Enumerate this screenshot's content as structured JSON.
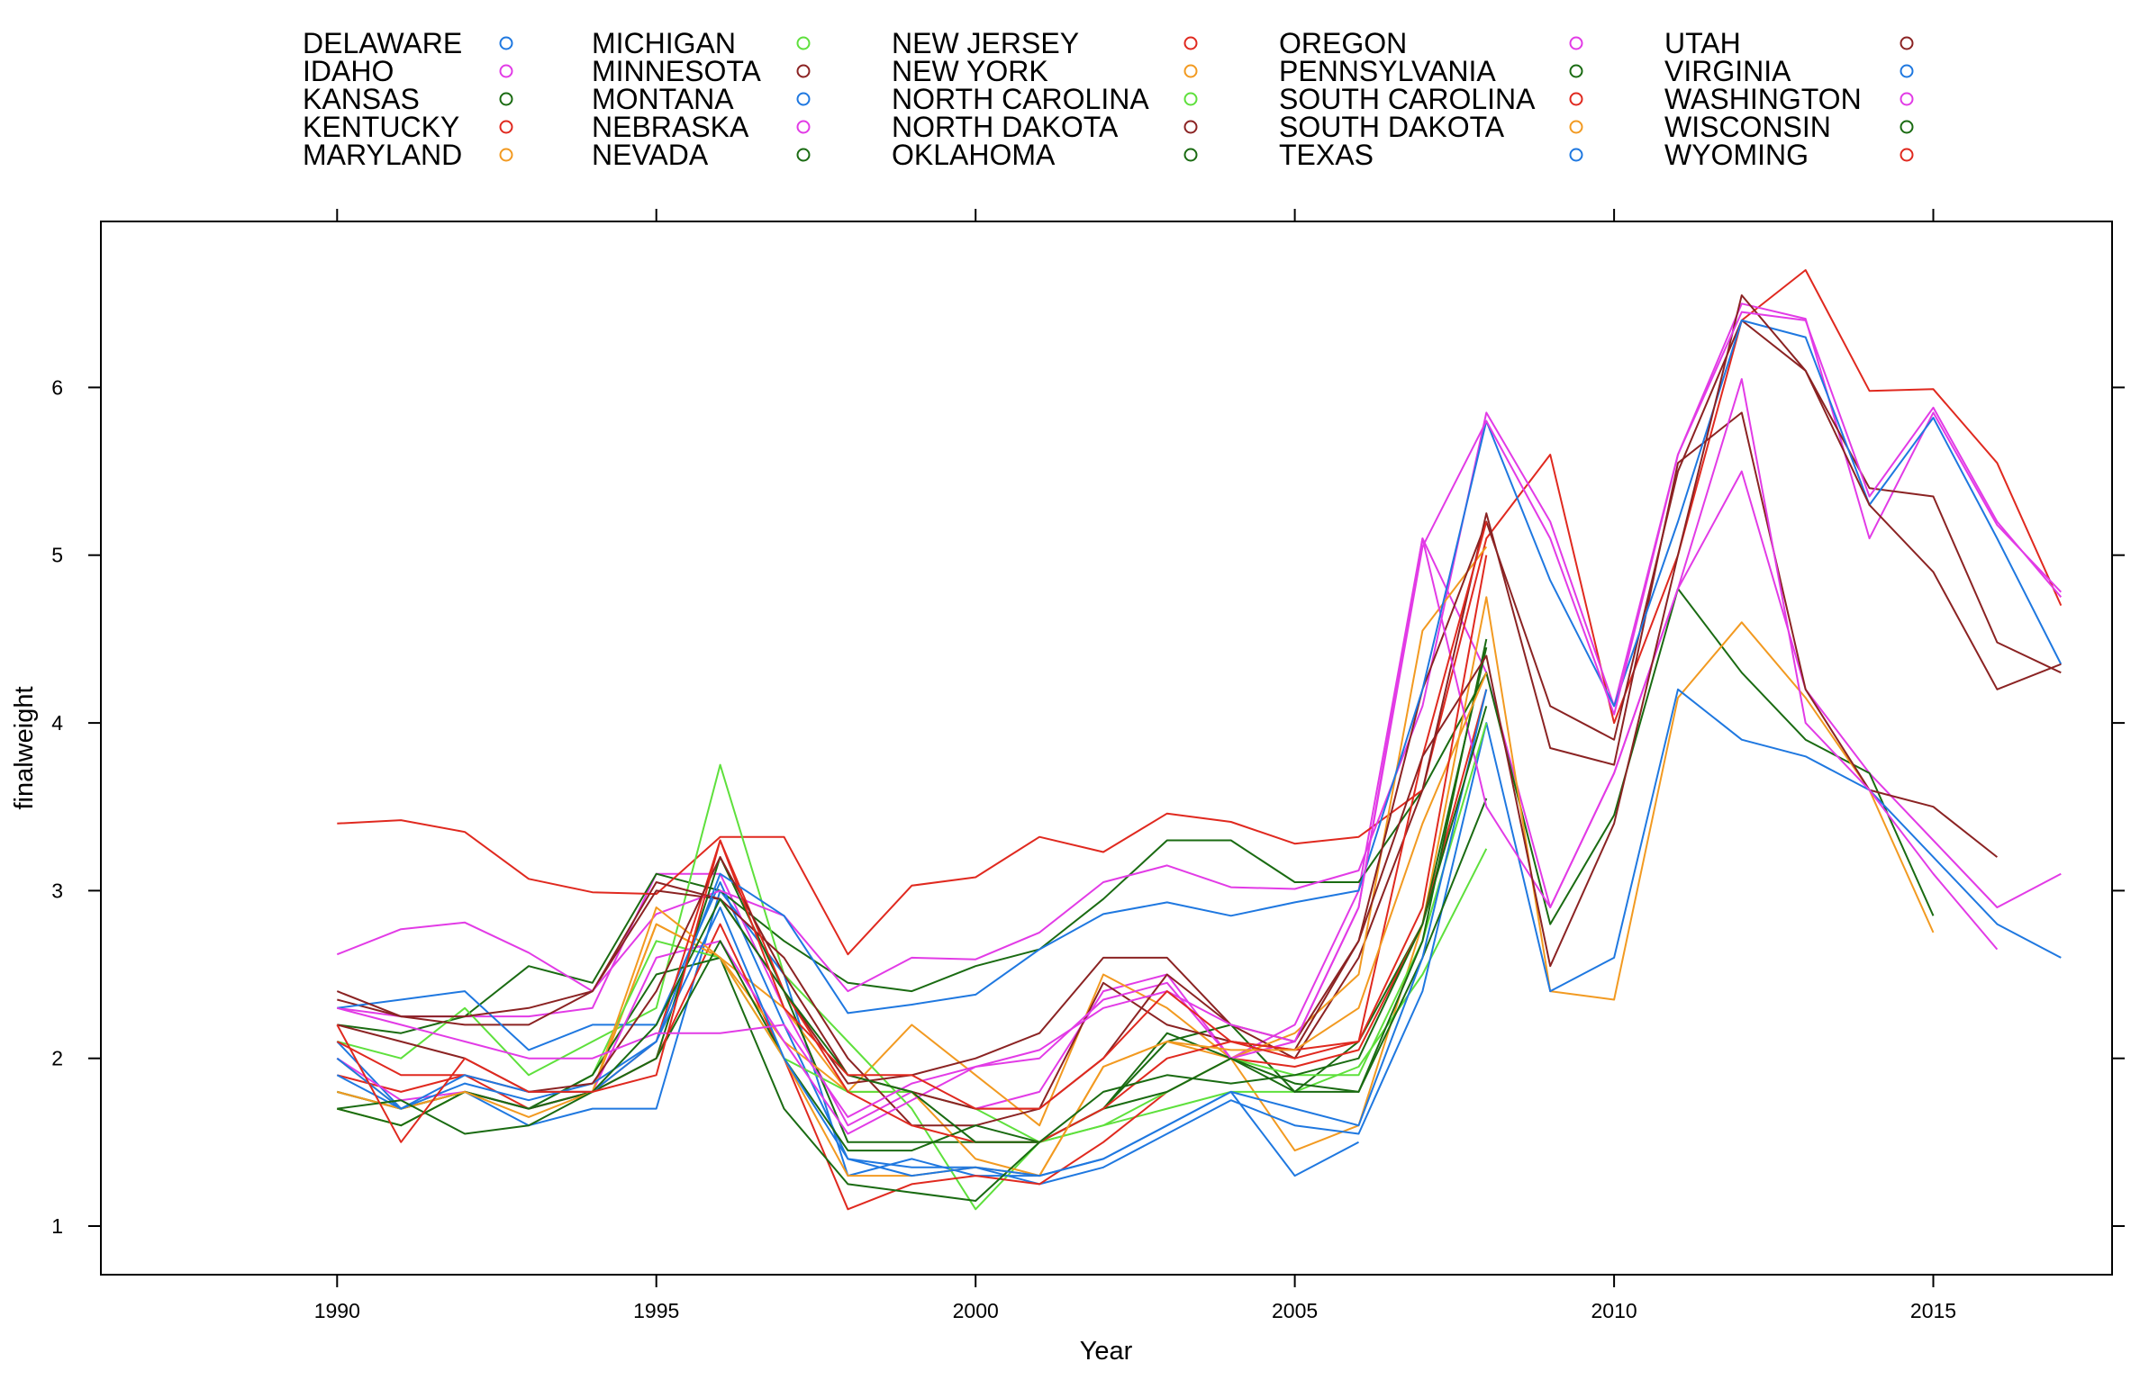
{
  "chart_data": {
    "type": "line",
    "title": "",
    "xlabel": "Year",
    "ylabel": "finalweight",
    "xlim": [
      1986.3,
      2017.8
    ],
    "ylim": [
      0.71,
      6.99
    ],
    "x_ticks": [
      1990,
      1995,
      2000,
      2005,
      2010,
      2015
    ],
    "y_ticks": [
      1,
      2,
      3,
      4,
      5,
      6
    ],
    "grid": false,
    "legend_position": "top",
    "x": [
      1990,
      1991,
      1992,
      1993,
      1994,
      1995,
      1996,
      1997,
      1998,
      1999,
      2000,
      2001,
      2002,
      2003,
      2004,
      2005,
      2006,
      2007,
      2008,
      2009,
      2010,
      2011,
      2012,
      2013,
      2014,
      2015,
      2016,
      2017
    ],
    "series": [
      {
        "name": "DELAWARE",
        "color": "#1f78e0",
        "values": [
          2.1,
          1.7,
          1.8,
          1.6,
          1.7,
          1.7,
          3.0,
          2.5,
          1.3,
          1.4,
          1.3,
          1.3,
          1.4,
          1.6,
          1.8,
          1.3,
          1.5,
          null,
          null,
          null,
          null,
          null,
          null,
          null,
          null,
          null,
          null,
          null
        ]
      },
      {
        "name": "IDAHO",
        "color": "#e23be6",
        "values": [
          2.3,
          2.25,
          2.25,
          2.25,
          2.3,
          3.1,
          3.1,
          2.3,
          1.6,
          1.8,
          1.7,
          1.8,
          2.4,
          2.5,
          2.0,
          2.2,
          3.0,
          5.1,
          4.3,
          2.9,
          3.7,
          4.8,
          5.5,
          4.2,
          3.7,
          3.3,
          2.9,
          3.1
        ]
      },
      {
        "name": "KANSAS",
        "color": "#1a6b12",
        "values": [
          2.2,
          2.15,
          2.25,
          2.55,
          2.45,
          3.1,
          3.0,
          2.7,
          2.45,
          2.4,
          2.55,
          2.65,
          2.95,
          3.3,
          3.3,
          3.05,
          3.05,
          3.6,
          4.3,
          2.8,
          3.45,
          4.8,
          4.3,
          3.9,
          3.7,
          2.85,
          null,
          null
        ]
      },
      {
        "name": "KENTUCKY",
        "color": "#e0291f",
        "values": [
          3.4,
          3.42,
          3.35,
          3.07,
          2.99,
          2.98,
          3.32,
          3.32,
          2.62,
          3.03,
          3.08,
          3.32,
          3.23,
          3.46,
          3.41,
          3.28,
          3.32,
          3.6,
          5.1,
          5.6,
          4.0,
          5.0,
          6.4,
          6.7,
          5.98,
          5.99,
          5.55,
          4.7
        ]
      },
      {
        "name": "MARYLAND",
        "color": "#f29a21",
        "values": [
          1.7,
          1.6,
          1.8,
          1.7,
          1.8,
          2.8,
          2.6,
          2.3,
          1.8,
          2.2,
          1.9,
          1.6,
          2.5,
          2.3,
          2.0,
          1.45,
          1.6,
          2.8,
          4.75,
          2.4,
          2.35,
          4.15,
          4.6,
          4.15,
          3.6,
          2.75,
          null,
          null
        ]
      },
      {
        "name": "MICHIGAN",
        "color": "#5ee03c",
        "values": [
          2.1,
          2.0,
          2.3,
          1.9,
          2.1,
          2.3,
          3.75,
          2.5,
          2.1,
          1.7,
          1.1,
          1.5,
          1.6,
          1.7,
          1.8,
          1.8,
          1.95,
          2.5,
          3.25,
          null,
          null,
          null,
          null,
          null,
          null,
          null,
          null,
          null
        ]
      },
      {
        "name": "MINNESOTA",
        "color": "#8b2323",
        "values": [
          2.35,
          2.25,
          2.2,
          2.2,
          2.4,
          3.0,
          2.95,
          2.4,
          1.85,
          1.9,
          2.0,
          2.15,
          2.6,
          2.6,
          2.2,
          2.0,
          2.6,
          3.6,
          5.25,
          3.85,
          3.75,
          5.55,
          5.85,
          4.2,
          3.6,
          3.5,
          3.2,
          null
        ]
      },
      {
        "name": "MONTANA",
        "color": "#1f78e0",
        "values": [
          2.3,
          2.35,
          2.4,
          2.05,
          2.2,
          2.2,
          3.05,
          2.2,
          1.4,
          1.35,
          1.35,
          1.25,
          1.35,
          1.55,
          1.75,
          1.6,
          1.55,
          2.4,
          4.0,
          2.4,
          2.6,
          4.2,
          3.9,
          3.8,
          3.6,
          3.2,
          2.8,
          2.6
        ]
      },
      {
        "name": "NEBRASKA",
        "color": "#e23be6",
        "values": [
          2.62,
          2.77,
          2.81,
          2.63,
          2.4,
          2.86,
          3.0,
          2.85,
          2.4,
          2.6,
          2.59,
          2.75,
          3.05,
          3.15,
          3.02,
          3.01,
          3.12,
          4.1,
          5.85,
          5.2,
          4.1,
          5.6,
          6.5,
          6.41,
          5.1,
          5.85,
          5.18,
          4.78
        ]
      },
      {
        "name": "NEVADA",
        "color": "#1a6b12",
        "values": [
          1.8,
          1.7,
          1.8,
          1.7,
          1.8,
          2.0,
          3.2,
          2.4,
          1.5,
          1.5,
          1.5,
          1.5,
          1.7,
          2.1,
          2.2,
          1.8,
          2.1,
          2.8,
          4.45,
          null,
          null,
          null,
          null,
          null,
          null,
          null,
          null,
          null
        ]
      },
      {
        "name": "NEW JERSEY",
        "color": "#e0291f",
        "values": [
          1.9,
          1.8,
          1.9,
          1.7,
          1.8,
          2.0,
          2.8,
          2.0,
          1.1,
          1.25,
          1.3,
          1.25,
          1.5,
          1.8,
          2.0,
          1.95,
          2.05,
          2.8,
          4.2,
          null,
          null,
          null,
          null,
          null,
          null,
          null,
          null,
          null
        ]
      },
      {
        "name": "NEW YORK",
        "color": "#f29a21",
        "values": [
          2.0,
          1.7,
          1.8,
          1.7,
          1.8,
          2.8,
          2.6,
          2.1,
          1.8,
          1.8,
          1.4,
          1.3,
          1.95,
          2.1,
          2.0,
          2.15,
          2.5,
          4.55,
          5.05,
          null,
          null,
          null,
          null,
          null,
          null,
          null,
          null,
          null
        ]
      },
      {
        "name": "NORTH CAROLINA",
        "color": "#5ee03c",
        "values": [
          1.7,
          1.6,
          1.8,
          1.7,
          1.9,
          2.7,
          2.6,
          2.0,
          1.8,
          1.8,
          1.7,
          1.5,
          1.6,
          1.8,
          2.0,
          1.9,
          1.9,
          2.7,
          4.0,
          null,
          null,
          null,
          null,
          null,
          null,
          null,
          null,
          null
        ]
      },
      {
        "name": "NORTH DAKOTA",
        "color": "#8b2323",
        "values": [
          2.4,
          2.25,
          2.25,
          2.3,
          2.4,
          3.05,
          2.95,
          2.6,
          2.0,
          1.6,
          1.6,
          1.7,
          2.45,
          2.2,
          2.1,
          2.05,
          2.7,
          4.2,
          5.2,
          4.1,
          3.9,
          5.5,
          6.4,
          6.1,
          5.4,
          5.35,
          4.48,
          4.3
        ]
      },
      {
        "name": "OKLAHOMA",
        "color": "#1a6b12",
        "values": [
          1.8,
          1.7,
          1.8,
          1.7,
          1.9,
          2.5,
          2.6,
          1.7,
          1.25,
          1.2,
          1.15,
          1.5,
          1.7,
          2.15,
          2.0,
          1.85,
          1.8,
          2.6,
          3.55,
          null,
          null,
          null,
          null,
          null,
          null,
          null,
          null,
          null
        ]
      },
      {
        "name": "OREGON",
        "color": "#e23be6",
        "values": [
          2.0,
          1.75,
          1.8,
          1.7,
          1.8,
          2.6,
          2.7,
          2.1,
          1.55,
          1.75,
          1.95,
          2.0,
          2.35,
          2.45,
          2.0,
          2.1,
          2.9,
          5.1,
          3.5,
          2.9,
          3.7,
          4.8,
          6.05,
          4.0,
          3.6,
          3.1,
          2.65,
          null
        ]
      },
      {
        "name": "PENNSYLVANIA",
        "color": "#1a6b12",
        "values": [
          1.7,
          1.6,
          1.8,
          1.7,
          1.8,
          2.0,
          2.7,
          2.0,
          1.45,
          1.45,
          1.6,
          1.5,
          1.7,
          1.8,
          2.0,
          1.8,
          1.8,
          2.7,
          4.5,
          null,
          null,
          null,
          null,
          null,
          null,
          null,
          null,
          null
        ]
      },
      {
        "name": "SOUTH CAROLINA",
        "color": "#e0291f",
        "values": [
          2.1,
          1.9,
          1.9,
          1.8,
          1.8,
          2.1,
          3.3,
          2.4,
          1.8,
          1.6,
          1.5,
          1.5,
          1.7,
          2.0,
          2.1,
          2.05,
          2.1,
          3.8,
          5.2,
          null,
          null,
          null,
          null,
          null,
          null,
          null,
          null,
          null
        ]
      },
      {
        "name": "SOUTH DAKOTA",
        "color": "#f29a21",
        "values": [
          1.8,
          1.7,
          1.8,
          1.65,
          1.8,
          2.9,
          2.6,
          2.0,
          1.3,
          1.3,
          1.35,
          1.3,
          1.95,
          2.1,
          2.05,
          2.05,
          2.3,
          3.4,
          4.3,
          null,
          null,
          null,
          null,
          null,
          null,
          null,
          null,
          null
        ]
      },
      {
        "name": "TEXAS",
        "color": "#1f78e0",
        "values": [
          1.9,
          1.7,
          1.85,
          1.75,
          1.85,
          2.1,
          3.1,
          2.85,
          2.27,
          2.32,
          2.38,
          2.65,
          2.86,
          2.93,
          2.85,
          2.93,
          3.0,
          4.2,
          5.8,
          4.85,
          4.1,
          5.2,
          6.4,
          6.3,
          5.3,
          5.82,
          5.1,
          4.35
        ]
      },
      {
        "name": "UTAH",
        "color": "#8b2323",
        "values": [
          2.2,
          2.1,
          2.0,
          1.8,
          1.85,
          2.4,
          3.2,
          2.5,
          1.9,
          1.8,
          1.7,
          1.7,
          2.0,
          2.5,
          2.2,
          2.1,
          2.7,
          3.8,
          4.4,
          2.55,
          3.4,
          5.0,
          6.55,
          6.1,
          5.3,
          4.9,
          4.2,
          4.35
        ]
      },
      {
        "name": "VIRGINIA",
        "color": "#1f78e0",
        "values": [
          2.0,
          1.7,
          1.9,
          1.8,
          1.8,
          2.1,
          2.9,
          2.0,
          1.4,
          1.3,
          1.35,
          1.3,
          1.4,
          1.6,
          1.8,
          1.7,
          1.6,
          2.6,
          4.2,
          null,
          null,
          null,
          null,
          null,
          null,
          null,
          null,
          null
        ]
      },
      {
        "name": "WASHINGTON",
        "color": "#e23be6",
        "values": [
          2.3,
          2.2,
          2.1,
          2.0,
          2.0,
          2.15,
          2.15,
          2.2,
          1.65,
          1.85,
          1.95,
          2.05,
          2.3,
          2.4,
          2.2,
          2.1,
          2.9,
          5.05,
          5.8,
          5.1,
          4.05,
          5.6,
          6.45,
          6.4,
          5.35,
          5.88,
          5.2,
          4.75
        ]
      },
      {
        "name": "WISCONSIN",
        "color": "#1a6b12",
        "values": [
          1.7,
          1.75,
          1.55,
          1.6,
          1.8,
          2.2,
          2.95,
          2.4,
          1.9,
          1.8,
          1.5,
          1.5,
          1.8,
          1.9,
          1.85,
          1.9,
          2.0,
          2.8,
          4.1,
          null,
          null,
          null,
          null,
          null,
          null,
          null,
          null,
          null
        ]
      },
      {
        "name": "WYOMING",
        "color": "#e0291f",
        "values": [
          2.2,
          1.5,
          2.0,
          1.8,
          1.8,
          1.9,
          3.3,
          2.3,
          1.9,
          1.9,
          1.7,
          1.7,
          2.0,
          2.4,
          2.1,
          2.0,
          2.1,
          2.9,
          5.0,
          null,
          null,
          null,
          null,
          null,
          null,
          null,
          null,
          null
        ]
      }
    ]
  }
}
